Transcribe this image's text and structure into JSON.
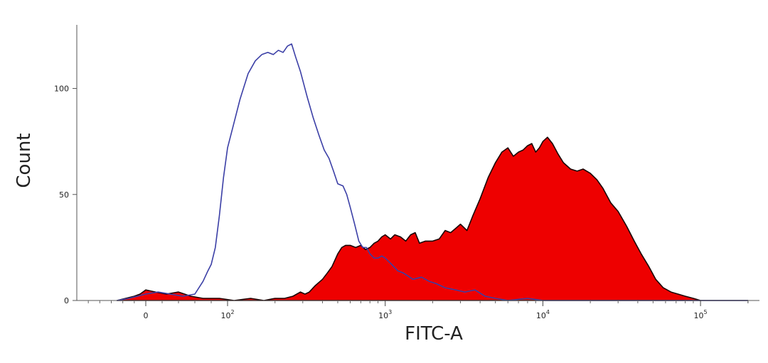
{
  "chart_data": {
    "type": "area",
    "title": "",
    "xlabel": "FITC-A",
    "ylabel": "Count",
    "x_scale": "log (biexponential, zero point shown)",
    "x_ticks": [
      {
        "value": 0,
        "label": "0"
      },
      {
        "value": 100,
        "label": "10",
        "exp": "2"
      },
      {
        "value": 1000,
        "label": "10",
        "exp": "3"
      },
      {
        "value": 10000,
        "label": "10",
        "exp": "4"
      },
      {
        "value": 100000,
        "label": "10",
        "exp": "5"
      }
    ],
    "y_ticks": [
      0,
      50,
      100
    ],
    "ylim": [
      0,
      130
    ],
    "grid": false,
    "legend": "none",
    "series": [
      {
        "style": "outline",
        "color": "#3b3fa6",
        "points": [
          [
            -50,
            0
          ],
          [
            -30,
            1
          ],
          [
            -15,
            2
          ],
          [
            0,
            3
          ],
          [
            15,
            4
          ],
          [
            30,
            3
          ],
          [
            45,
            2
          ],
          [
            60,
            3
          ],
          [
            70,
            9
          ],
          [
            76,
            14
          ],
          [
            80,
            17
          ],
          [
            85,
            25
          ],
          [
            90,
            40
          ],
          [
            95,
            58
          ],
          [
            100,
            72
          ],
          [
            110,
            84
          ],
          [
            120,
            95
          ],
          [
            135,
            107
          ],
          [
            150,
            113
          ],
          [
            165,
            116
          ],
          [
            180,
            117
          ],
          [
            195,
            116
          ],
          [
            210,
            118
          ],
          [
            225,
            117
          ],
          [
            240,
            120
          ],
          [
            255,
            121
          ],
          [
            270,
            115
          ],
          [
            290,
            108
          ],
          [
            320,
            96
          ],
          [
            350,
            86
          ],
          [
            380,
            78
          ],
          [
            410,
            71
          ],
          [
            440,
            67
          ],
          [
            470,
            61
          ],
          [
            500,
            55
          ],
          [
            540,
            54
          ],
          [
            570,
            50
          ],
          [
            600,
            44
          ],
          [
            640,
            36
          ],
          [
            680,
            28
          ],
          [
            720,
            25
          ],
          [
            760,
            25
          ],
          [
            800,
            22
          ],
          [
            850,
            20
          ],
          [
            900,
            20
          ],
          [
            950,
            21
          ],
          [
            1000,
            20
          ],
          [
            1100,
            17
          ],
          [
            1200,
            14
          ],
          [
            1300,
            13
          ],
          [
            1500,
            10
          ],
          [
            1700,
            11
          ],
          [
            1900,
            9
          ],
          [
            2100,
            8
          ],
          [
            2400,
            6
          ],
          [
            2800,
            5
          ],
          [
            3200,
            4
          ],
          [
            3700,
            5
          ],
          [
            4300,
            2
          ],
          [
            5000,
            1
          ],
          [
            6000,
            0
          ],
          [
            8000,
            1
          ],
          [
            10000,
            0
          ],
          [
            20000,
            0
          ],
          [
            50000,
            0
          ],
          [
            100000,
            0
          ],
          [
            200000,
            0
          ]
        ]
      },
      {
        "style": "filled",
        "color": "#ee0000",
        "points": [
          [
            -50,
            0
          ],
          [
            -35,
            1
          ],
          [
            -20,
            2
          ],
          [
            -10,
            3
          ],
          [
            0,
            5
          ],
          [
            12,
            4
          ],
          [
            25,
            3
          ],
          [
            40,
            4
          ],
          [
            55,
            2
          ],
          [
            70,
            1
          ],
          [
            90,
            1
          ],
          [
            110,
            0
          ],
          [
            140,
            1
          ],
          [
            170,
            0
          ],
          [
            200,
            1
          ],
          [
            230,
            1
          ],
          [
            260,
            2
          ],
          [
            290,
            4
          ],
          [
            310,
            3
          ],
          [
            330,
            4
          ],
          [
            360,
            7
          ],
          [
            400,
            10
          ],
          [
            430,
            13
          ],
          [
            460,
            16
          ],
          [
            500,
            22
          ],
          [
            530,
            25
          ],
          [
            560,
            26
          ],
          [
            600,
            26
          ],
          [
            650,
            25
          ],
          [
            700,
            26
          ],
          [
            750,
            24
          ],
          [
            800,
            25
          ],
          [
            850,
            27
          ],
          [
            900,
            28
          ],
          [
            950,
            30
          ],
          [
            1000,
            31
          ],
          [
            1080,
            29
          ],
          [
            1150,
            31
          ],
          [
            1250,
            30
          ],
          [
            1350,
            28
          ],
          [
            1450,
            31
          ],
          [
            1550,
            32
          ],
          [
            1650,
            27
          ],
          [
            1800,
            28
          ],
          [
            2000,
            28
          ],
          [
            2200,
            29
          ],
          [
            2400,
            33
          ],
          [
            2600,
            32
          ],
          [
            2800,
            34
          ],
          [
            3000,
            36
          ],
          [
            3300,
            33
          ],
          [
            3600,
            40
          ],
          [
            4000,
            48
          ],
          [
            4500,
            58
          ],
          [
            5000,
            65
          ],
          [
            5500,
            70
          ],
          [
            6000,
            72
          ],
          [
            6500,
            68
          ],
          [
            7000,
            70
          ],
          [
            7500,
            71
          ],
          [
            8000,
            73
          ],
          [
            8500,
            74
          ],
          [
            9000,
            70
          ],
          [
            9500,
            72
          ],
          [
            10000,
            75
          ],
          [
            10700,
            77
          ],
          [
            11500,
            74
          ],
          [
            12500,
            69
          ],
          [
            13500,
            65
          ],
          [
            15000,
            62
          ],
          [
            16500,
            61
          ],
          [
            18000,
            62
          ],
          [
            20000,
            60
          ],
          [
            22000,
            57
          ],
          [
            24000,
            53
          ],
          [
            27000,
            46
          ],
          [
            30000,
            42
          ],
          [
            34000,
            35
          ],
          [
            38000,
            28
          ],
          [
            42000,
            22
          ],
          [
            47000,
            16
          ],
          [
            52000,
            10
          ],
          [
            58000,
            6
          ],
          [
            65000,
            4
          ],
          [
            72000,
            3
          ],
          [
            80000,
            2
          ],
          [
            90000,
            1
          ],
          [
            100000,
            0
          ],
          [
            200000,
            0
          ]
        ]
      }
    ]
  }
}
